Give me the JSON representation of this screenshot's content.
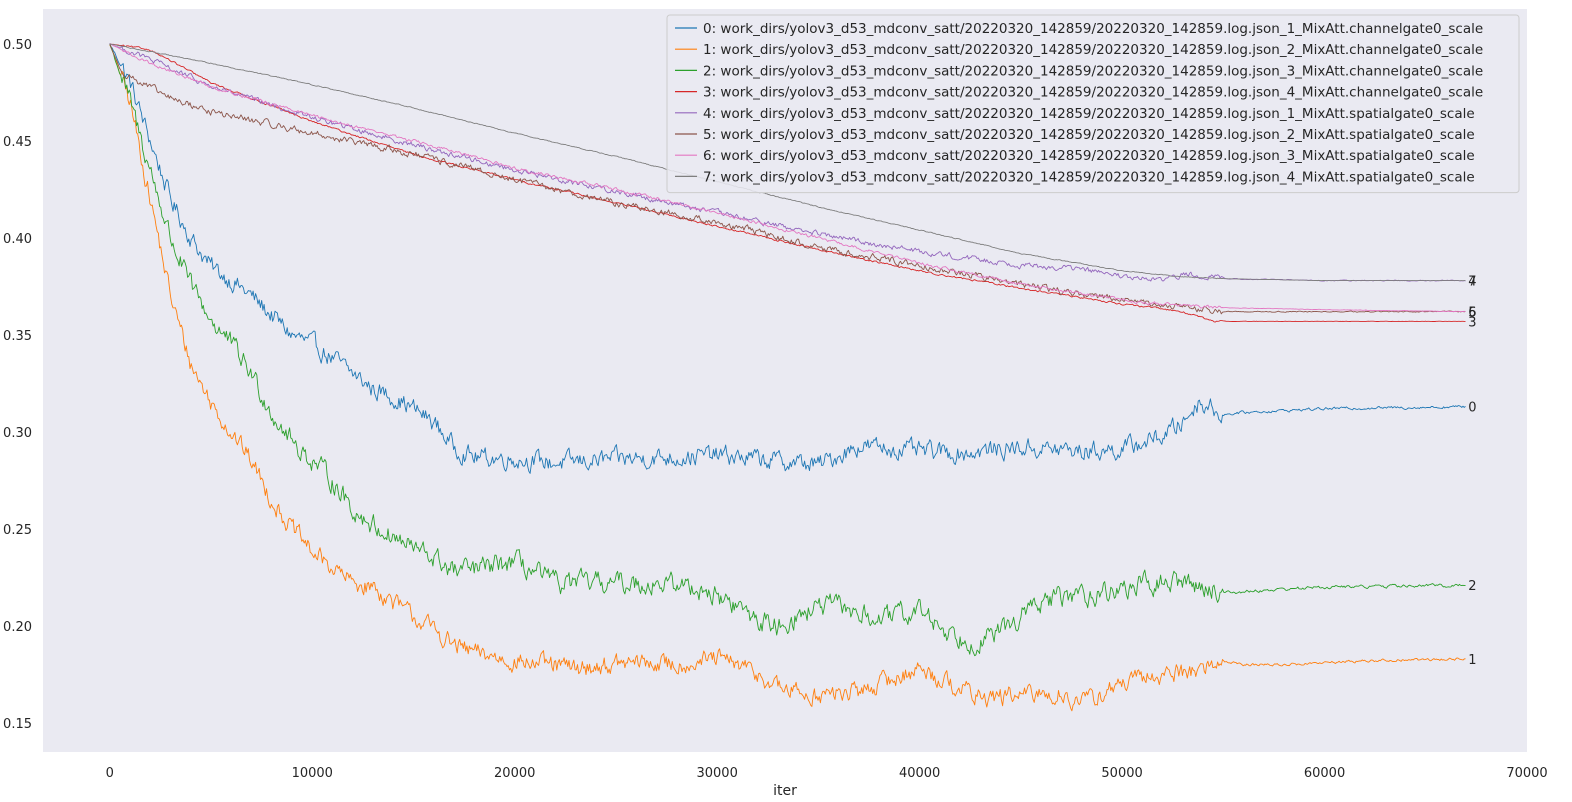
{
  "chart_data": {
    "type": "line",
    "xlabel": "iter",
    "ylabel": "",
    "xlim": [
      -3300,
      70000
    ],
    "ylim": [
      0.135,
      0.518
    ],
    "x_ticks": [
      0,
      10000,
      20000,
      30000,
      40000,
      50000,
      60000,
      70000
    ],
    "x_tick_labels": [
      "0",
      "10000",
      "20000",
      "30000",
      "40000",
      "50000",
      "60000",
      "70000"
    ],
    "y_ticks": [
      0.15,
      0.2,
      0.25,
      0.3,
      0.35,
      0.4,
      0.45,
      0.5
    ],
    "y_tick_labels": [
      "0.15",
      "0.20",
      "0.25",
      "0.30",
      "0.35",
      "0.40",
      "0.45",
      "0.50"
    ],
    "grid": false,
    "legend_position": "top-right",
    "background": "#eaeaf2",
    "series": [
      {
        "name": "0: work_dirs/yolov3_d53_mdconv_satt/20220320_142859/20220320_142859.log.json_1_MixAtt.channelgate0_scale",
        "color": "#1f77b4",
        "end_label": "0",
        "noise": 0.004,
        "x": [
          0,
          1000,
          2000,
          3000,
          4000,
          5000,
          6000,
          7000,
          8000,
          9000,
          10000,
          11000,
          12000,
          13000,
          14000,
          15000,
          16000,
          17000,
          18000,
          20000,
          22000,
          25000,
          28000,
          30000,
          33000,
          35000,
          36000,
          37000,
          40000,
          42000,
          45000,
          48000,
          50000,
          52000,
          53000,
          53800,
          54500,
          55000,
          56000,
          60000,
          67000
        ],
        "y": [
          0.5,
          0.48,
          0.45,
          0.42,
          0.4,
          0.385,
          0.378,
          0.37,
          0.36,
          0.35,
          0.345,
          0.338,
          0.33,
          0.322,
          0.318,
          0.312,
          0.305,
          0.292,
          0.287,
          0.286,
          0.284,
          0.286,
          0.287,
          0.288,
          0.285,
          0.283,
          0.288,
          0.293,
          0.29,
          0.289,
          0.292,
          0.29,
          0.291,
          0.298,
          0.305,
          0.316,
          0.312,
          0.309,
          0.31,
          0.312,
          0.313
        ]
      },
      {
        "name": "1: work_dirs/yolov3_d53_mdconv_satt/20220320_142859/20220320_142859.log.json_2_MixAtt.channelgate0_scale",
        "color": "#ff7f0e",
        "end_label": "1",
        "noise": 0.004,
        "x": [
          0,
          1000,
          2000,
          3000,
          4000,
          5000,
          6000,
          7000,
          8000,
          9000,
          10000,
          11000,
          12000,
          13000,
          14000,
          15000,
          16000,
          17000,
          18000,
          20000,
          23000,
          26000,
          28000,
          30000,
          31000,
          32000,
          33000,
          35000,
          37000,
          40000,
          42000,
          43000,
          45000,
          47000,
          48000,
          50000,
          52000,
          54000,
          55000,
          56000,
          58000,
          62000,
          67000
        ],
        "y": [
          0.5,
          0.47,
          0.42,
          0.37,
          0.335,
          0.315,
          0.3,
          0.285,
          0.265,
          0.25,
          0.238,
          0.23,
          0.222,
          0.22,
          0.212,
          0.205,
          0.198,
          0.19,
          0.186,
          0.182,
          0.178,
          0.181,
          0.18,
          0.183,
          0.18,
          0.175,
          0.168,
          0.164,
          0.166,
          0.178,
          0.168,
          0.163,
          0.164,
          0.165,
          0.16,
          0.17,
          0.175,
          0.178,
          0.182,
          0.18,
          0.18,
          0.182,
          0.183
        ]
      },
      {
        "name": "2: work_dirs/yolov3_d53_mdconv_satt/20220320_142859/20220320_142859.log.json_3_MixAtt.channelgate0_scale",
        "color": "#2ca02c",
        "end_label": "2",
        "noise": 0.0045,
        "x": [
          0,
          1000,
          2000,
          3000,
          4000,
          5000,
          6000,
          7000,
          8000,
          9000,
          10000,
          11000,
          12000,
          13000,
          14000,
          15000,
          16000,
          17000,
          18000,
          20000,
          22000,
          25000,
          27000,
          29000,
          31000,
          32000,
          33000,
          35000,
          36000,
          38000,
          40000,
          41000,
          42000,
          43000,
          44000,
          45000,
          46000,
          47000,
          49000,
          50000,
          51000,
          52000,
          53000,
          54000,
          55000,
          58000,
          60000,
          67000
        ],
        "y": [
          0.5,
          0.47,
          0.435,
          0.4,
          0.375,
          0.358,
          0.345,
          0.33,
          0.31,
          0.295,
          0.285,
          0.275,
          0.26,
          0.252,
          0.246,
          0.24,
          0.235,
          0.228,
          0.229,
          0.233,
          0.222,
          0.222,
          0.222,
          0.22,
          0.21,
          0.203,
          0.2,
          0.21,
          0.21,
          0.203,
          0.208,
          0.2,
          0.194,
          0.192,
          0.197,
          0.205,
          0.212,
          0.215,
          0.217,
          0.219,
          0.221,
          0.222,
          0.223,
          0.22,
          0.217,
          0.219,
          0.22,
          0.221
        ]
      },
      {
        "name": "3: work_dirs/yolov3_d53_mdconv_satt/20220320_142859/20220320_142859.log.json_4_MixAtt.channelgate0_scale",
        "color": "#d62728",
        "end_label": "3",
        "noise": 0.0004,
        "x": [
          0,
          2000,
          5000,
          10000,
          15000,
          20000,
          25000,
          30000,
          35000,
          40000,
          45000,
          50000,
          53000,
          54500,
          60000,
          67000
        ],
        "y": [
          0.5,
          0.497,
          0.48,
          0.46,
          0.443,
          0.43,
          0.418,
          0.406,
          0.394,
          0.383,
          0.374,
          0.366,
          0.362,
          0.357,
          0.357,
          0.357
        ]
      },
      {
        "name": "4: work_dirs/yolov3_d53_mdconv_satt/20220320_142859/20220320_142859.log.json_1_MixAtt.spatialgate0_scale",
        "color": "#9467bd",
        "end_label": "4",
        "noise": 0.0012,
        "x": [
          0,
          2000,
          5000,
          10000,
          15000,
          20000,
          25000,
          30000,
          35000,
          40000,
          45000,
          48000,
          50000,
          52000,
          53000,
          54000,
          55000,
          60000,
          67000
        ],
        "y": [
          0.5,
          0.492,
          0.478,
          0.462,
          0.448,
          0.435,
          0.424,
          0.413,
          0.402,
          0.393,
          0.386,
          0.384,
          0.38,
          0.378,
          0.381,
          0.381,
          0.379,
          0.378,
          0.378
        ]
      },
      {
        "name": "5: work_dirs/yolov3_d53_mdconv_satt/20220320_142859/20220320_142859.log.json_2_MixAtt.spatialgate0_scale",
        "color": "#8c564b",
        "end_label": "5",
        "noise": 0.0015,
        "x": [
          0,
          500,
          1500,
          3000,
          5000,
          10000,
          15000,
          20000,
          25000,
          30000,
          35000,
          40000,
          45000,
          50000,
          53000,
          55000,
          60000,
          67000
        ],
        "y": [
          0.5,
          0.487,
          0.48,
          0.472,
          0.465,
          0.454,
          0.443,
          0.43,
          0.418,
          0.408,
          0.395,
          0.386,
          0.376,
          0.368,
          0.364,
          0.362,
          0.362,
          0.362
        ]
      },
      {
        "name": "6: work_dirs/yolov3_d53_mdconv_satt/20220320_142859/20220320_142859.log.json_3_MixAtt.spatialgate0_scale",
        "color": "#e377c2",
        "end_label": "6",
        "noise": 0.0007,
        "x": [
          0,
          2000,
          5000,
          10000,
          15000,
          20000,
          25000,
          30000,
          35000,
          40000,
          45000,
          50000,
          53000,
          55000,
          60000,
          67000
        ],
        "y": [
          0.5,
          0.49,
          0.478,
          0.463,
          0.45,
          0.436,
          0.425,
          0.413,
          0.4,
          0.387,
          0.376,
          0.368,
          0.365,
          0.364,
          0.363,
          0.362
        ]
      },
      {
        "name": "7: work_dirs/yolov3_d53_mdconv_satt/20220320_142859/20220320_142859.log.json_4_MixAtt.spatialgate0_scale",
        "color": "#7f7f7f",
        "end_label": "7",
        "noise": 0.0002,
        "x": [
          0,
          2000,
          5000,
          10000,
          15000,
          20000,
          25000,
          30000,
          35000,
          40000,
          45000,
          50000,
          53000,
          55000,
          60000,
          67000
        ],
        "y": [
          0.5,
          0.496,
          0.49,
          0.479,
          0.467,
          0.454,
          0.442,
          0.429,
          0.416,
          0.404,
          0.392,
          0.383,
          0.38,
          0.379,
          0.378,
          0.378
        ]
      }
    ]
  }
}
